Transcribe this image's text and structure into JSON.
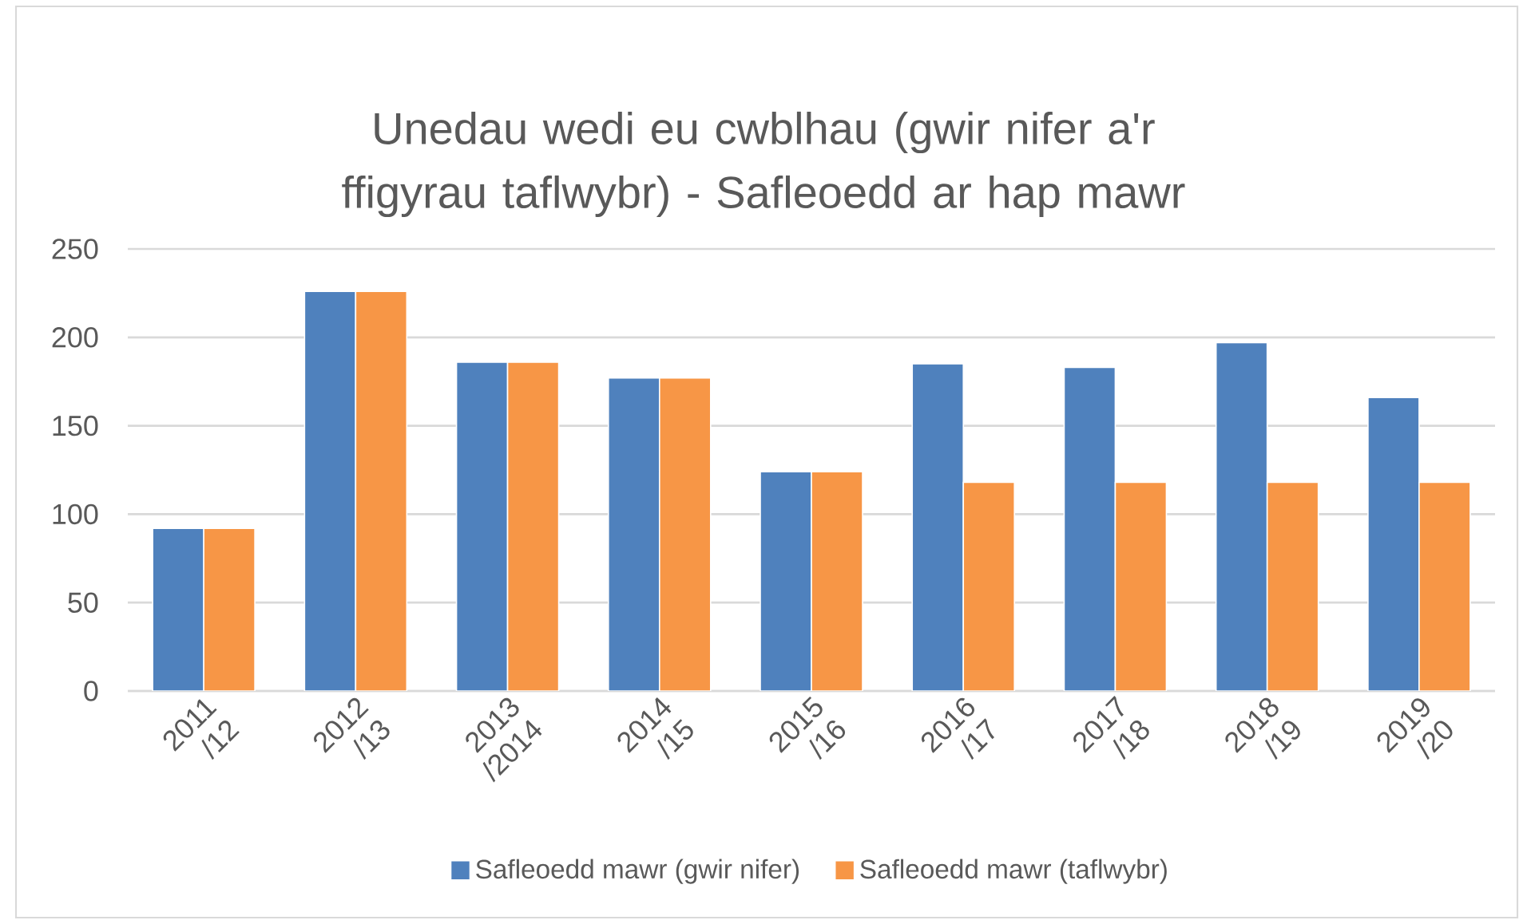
{
  "chart_data": {
    "type": "bar",
    "title": "Unedau wedi eu cwblhau (gwir nifer a'r ffigyrau taflwybr) - Safleoedd ar hap mawr",
    "categories": [
      "2011 /12",
      "2012 /13",
      "2013 /2014",
      "2014 /15",
      "2015 /16",
      "2016 /17",
      "2017 /18",
      "2018 /19",
      "2019 /20"
    ],
    "series": [
      {
        "name": "Safleoedd mawr (gwir nifer)",
        "color": "#4f81bd",
        "values": [
          92,
          226,
          186,
          177,
          124,
          185,
          183,
          197,
          166
        ]
      },
      {
        "name": "Safleoedd mawr (taflwybr)",
        "color": "#f79646",
        "values": [
          92,
          226,
          186,
          177,
          124,
          118,
          118,
          118,
          118
        ]
      }
    ],
    "ylim": [
      0,
      250
    ],
    "yticks": [
      0,
      50,
      100,
      150,
      200,
      250
    ],
    "grid": "y",
    "legend": "bottom"
  }
}
